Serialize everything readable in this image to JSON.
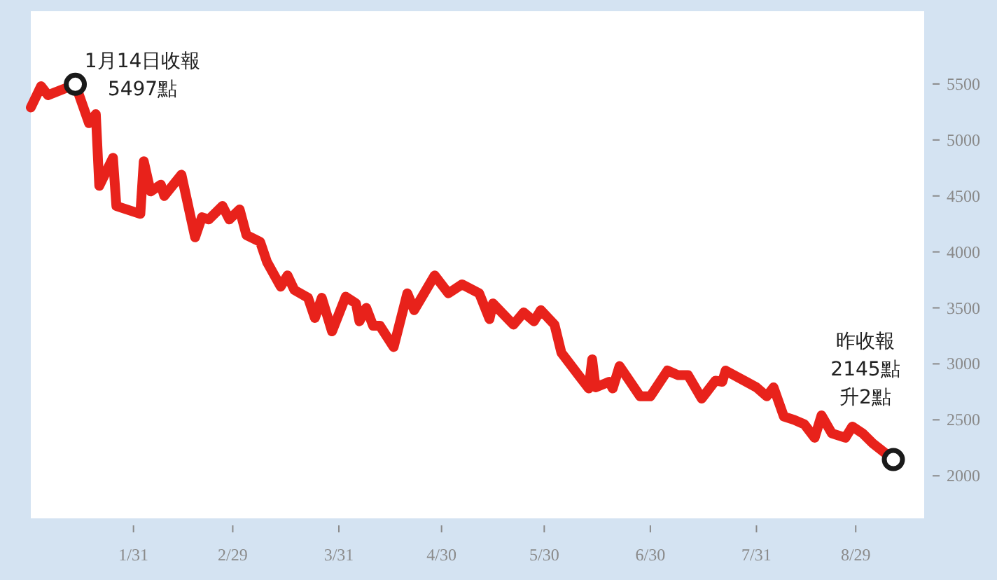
{
  "chart_data": {
    "type": "line",
    "x": [
      "--01-01",
      "--01-04",
      "--01-06",
      "--01-11",
      "--01-14",
      "--01-18",
      "--01-20",
      "--01-21",
      "--01-25",
      "--01-26",
      "--02-02",
      "--02-03",
      "--02-05",
      "--02-08",
      "--02-09",
      "--02-14",
      "--02-18",
      "--02-20",
      "--02-22",
      "--02-26",
      "--02-28",
      "--03-02",
      "--03-04",
      "--03-08",
      "--03-10",
      "--03-14",
      "--03-16",
      "--03-18",
      "--03-22",
      "--03-24",
      "--03-26",
      "--03-29",
      "--04-02",
      "--04-05",
      "--04-06",
      "--04-08",
      "--04-10",
      "--04-12",
      "--04-16",
      "--04-20",
      "--04-22",
      "--04-28",
      "--05-02",
      "--05-06",
      "--05-11",
      "--05-14",
      "--05-15",
      "--05-21",
      "--05-24",
      "--05-27",
      "--05-29",
      "--06-02",
      "--06-04",
      "--06-09",
      "--06-12",
      "--06-13",
      "--06-14",
      "--06-18",
      "--06-19",
      "--06-21",
      "--06-27",
      "--06-30",
      "--07-05",
      "--07-08",
      "--07-11",
      "--07-15",
      "--07-19",
      "--07-21",
      "--07-22",
      "--07-28",
      "--07-31",
      "--08-03",
      "--08-05",
      "--08-08",
      "--08-11",
      "--08-14",
      "--08-17",
      "--08-19",
      "--08-22",
      "--08-26",
      "--08-28",
      "--08-31",
      "--09-03",
      "--09-09"
    ],
    "series": [
      {
        "color": "#e8221b",
        "values": [
          5290,
          5480,
          5400,
          5460,
          5497,
          5150,
          5230,
          4590,
          4840,
          4410,
          4340,
          4810,
          4540,
          4600,
          4500,
          4690,
          4130,
          4310,
          4290,
          4410,
          4290,
          4380,
          4150,
          4090,
          3910,
          3690,
          3790,
          3660,
          3590,
          3410,
          3590,
          3290,
          3600,
          3540,
          3380,
          3500,
          3340,
          3340,
          3150,
          3630,
          3480,
          3790,
          3630,
          3710,
          3630,
          3400,
          3540,
          3350,
          3460,
          3380,
          3480,
          3350,
          3100,
          2900,
          2780,
          3040,
          2790,
          2840,
          2780,
          2980,
          2710,
          2710,
          2940,
          2900,
          2900,
          2690,
          2850,
          2840,
          2940,
          2840,
          2790,
          2710,
          2790,
          2530,
          2500,
          2460,
          2340,
          2540,
          2380,
          2340,
          2440,
          2380,
          2290,
          2145
        ]
      }
    ],
    "xlim": [
      "--01-01",
      "--09-18"
    ],
    "xticks": [
      {
        "value": "--01-31",
        "label": "1/31"
      },
      {
        "value": "--02-29",
        "label": "2/29"
      },
      {
        "value": "--03-31",
        "label": "3/31"
      },
      {
        "value": "--04-30",
        "label": "4/30"
      },
      {
        "value": "--05-30",
        "label": "5/30"
      },
      {
        "value": "--06-30",
        "label": "6/30"
      },
      {
        "value": "--07-31",
        "label": "7/31"
      },
      {
        "value": "--08-29",
        "label": "8/29"
      }
    ],
    "ylim": [
      1620,
      6150
    ],
    "yticks": [
      2000,
      2500,
      3000,
      3500,
      4000,
      4500,
      5000,
      5500
    ],
    "grid": false,
    "marker": "none",
    "line_style": "solid",
    "annotations": [
      "1月14日收報",
      {
        "text": "5497點",
        "x": "--01-14",
        "y": 5497
      },
      "昨收報",
      "2145點",
      {
        "text": "升2點",
        "x": "--09-09",
        "y": 2145
      }
    ]
  }
}
